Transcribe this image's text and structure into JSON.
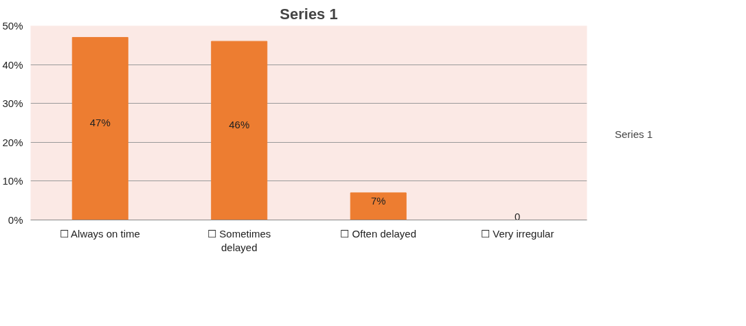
{
  "chart_data": {
    "type": "bar",
    "title": "Series 1",
    "categories": [
      "☐ Always on time",
      "☐ Sometimes delayed",
      "☐ Often delayed",
      "☐ Very irregular"
    ],
    "series": [
      {
        "name": "Series 1",
        "color": "#ed7d31",
        "values": [
          47,
          46,
          7,
          0
        ],
        "value_labels": [
          "47%",
          "46%",
          "7%",
          "0"
        ]
      }
    ],
    "ylim": [
      0,
      50
    ],
    "yticks": [
      {
        "value": 0,
        "label": "0%"
      },
      {
        "value": 10,
        "label": "10%"
      },
      {
        "value": 20,
        "label": "20%"
      },
      {
        "value": 30,
        "label": "30%"
      },
      {
        "value": 40,
        "label": "40%"
      },
      {
        "value": 50,
        "label": "50%"
      }
    ],
    "grid": "y",
    "legend": "right"
  }
}
